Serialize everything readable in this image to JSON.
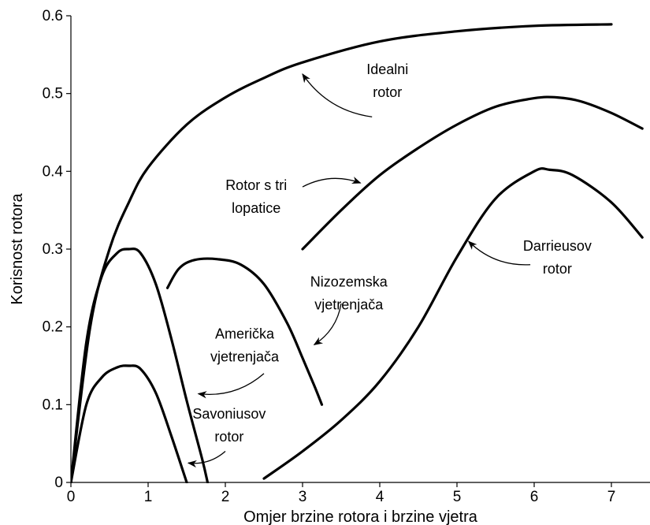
{
  "chart_data": {
    "type": "line",
    "title": "",
    "xlabel": "Omjer brzine rotora i brzine vjetra",
    "ylabel": "Korisnost rotora",
    "xlim": [
      0,
      7.5
    ],
    "ylim": [
      0,
      0.6
    ],
    "x_ticks": [
      0,
      1,
      2,
      3,
      4,
      5,
      6,
      7
    ],
    "y_ticks": [
      0,
      0.1,
      0.2,
      0.3,
      0.4,
      0.5,
      0.6
    ],
    "x_tick_labels": [
      "0",
      "1",
      "2",
      "3",
      "4",
      "5",
      "6",
      "7"
    ],
    "y_tick_labels": [
      "0",
      "0.1",
      "0.2",
      "0.3",
      "0.4",
      "0.5",
      "0.6"
    ],
    "grid": false,
    "legend": "none",
    "series": [
      {
        "name": "Idealni rotor",
        "x": [
          0,
          0.25,
          0.5,
          0.75,
          1.0,
          1.5,
          2.0,
          2.5,
          3.0,
          4.0,
          5.0,
          6.0,
          7.0
        ],
        "y": [
          0,
          0.2,
          0.3,
          0.36,
          0.405,
          0.46,
          0.495,
          0.52,
          0.54,
          0.567,
          0.58,
          0.587,
          0.589
        ]
      },
      {
        "name": "Rotor s tri lopatice",
        "x": [
          3.0,
          3.5,
          4.0,
          4.5,
          5.0,
          5.5,
          6.0,
          6.3,
          6.6,
          7.0,
          7.4
        ],
        "y": [
          0.3,
          0.35,
          0.395,
          0.43,
          0.46,
          0.483,
          0.494,
          0.495,
          0.49,
          0.475,
          0.455
        ]
      },
      {
        "name": "Darrieusov rotor",
        "x": [
          2.5,
          3.0,
          3.5,
          4.0,
          4.5,
          5.0,
          5.5,
          6.0,
          6.2,
          6.5,
          7.0,
          7.4
        ],
        "y": [
          0.005,
          0.04,
          0.08,
          0.13,
          0.2,
          0.29,
          0.365,
          0.4,
          0.402,
          0.395,
          0.36,
          0.315
        ]
      },
      {
        "name": "Nizozemska vjetrenjača",
        "x": [
          1.25,
          1.4,
          1.6,
          1.9,
          2.2,
          2.5,
          2.8,
          3.0,
          3.15,
          3.25
        ],
        "y": [
          0.25,
          0.275,
          0.286,
          0.287,
          0.28,
          0.255,
          0.205,
          0.16,
          0.125,
          0.1
        ]
      },
      {
        "name": "Američka vjetrenjača",
        "x": [
          0,
          0.2,
          0.4,
          0.6,
          0.75,
          0.9,
          1.1,
          1.3,
          1.5,
          1.7,
          1.77
        ],
        "y": [
          0,
          0.18,
          0.265,
          0.295,
          0.3,
          0.295,
          0.255,
          0.185,
          0.105,
          0.03,
          0.0
        ]
      },
      {
        "name": "Savoniusov rotor",
        "x": [
          0,
          0.2,
          0.4,
          0.6,
          0.75,
          0.9,
          1.1,
          1.3,
          1.5
        ],
        "y": [
          0,
          0.1,
          0.135,
          0.148,
          0.15,
          0.146,
          0.115,
          0.06,
          0.0
        ]
      }
    ],
    "annotations": [
      {
        "lines": [
          "Idealni",
          "rotor"
        ],
        "x": 4.1,
        "y": 0.525,
        "arrow_from": [
          3.9,
          0.47
        ],
        "arrow_to": [
          3.0,
          0.525
        ]
      },
      {
        "lines": [
          "Rotor s tri",
          "lopatice"
        ],
        "x": 2.4,
        "y": 0.376,
        "arrow_from": [
          3.0,
          0.38
        ],
        "arrow_to": [
          3.75,
          0.385
        ]
      },
      {
        "lines": [
          "Darrieusov",
          "rotor"
        ],
        "x": 6.3,
        "y": 0.298,
        "arrow_from": [
          5.95,
          0.28
        ],
        "arrow_to": [
          5.15,
          0.31
        ]
      },
      {
        "lines": [
          "Nizozemska",
          "vjetrenjača"
        ],
        "x": 3.6,
        "y": 0.252,
        "arrow_from": [
          3.5,
          0.23
        ],
        "arrow_to": [
          3.15,
          0.177
        ]
      },
      {
        "lines": [
          "Američka",
          "vjetrenjača"
        ],
        "x": 2.25,
        "y": 0.185,
        "arrow_from": [
          2.5,
          0.14
        ],
        "arrow_to": [
          1.65,
          0.114
        ]
      },
      {
        "lines": [
          "Savoniusov",
          "rotor"
        ],
        "x": 2.05,
        "y": 0.082,
        "arrow_from": [
          2.0,
          0.04
        ],
        "arrow_to": [
          1.52,
          0.025
        ]
      }
    ]
  }
}
